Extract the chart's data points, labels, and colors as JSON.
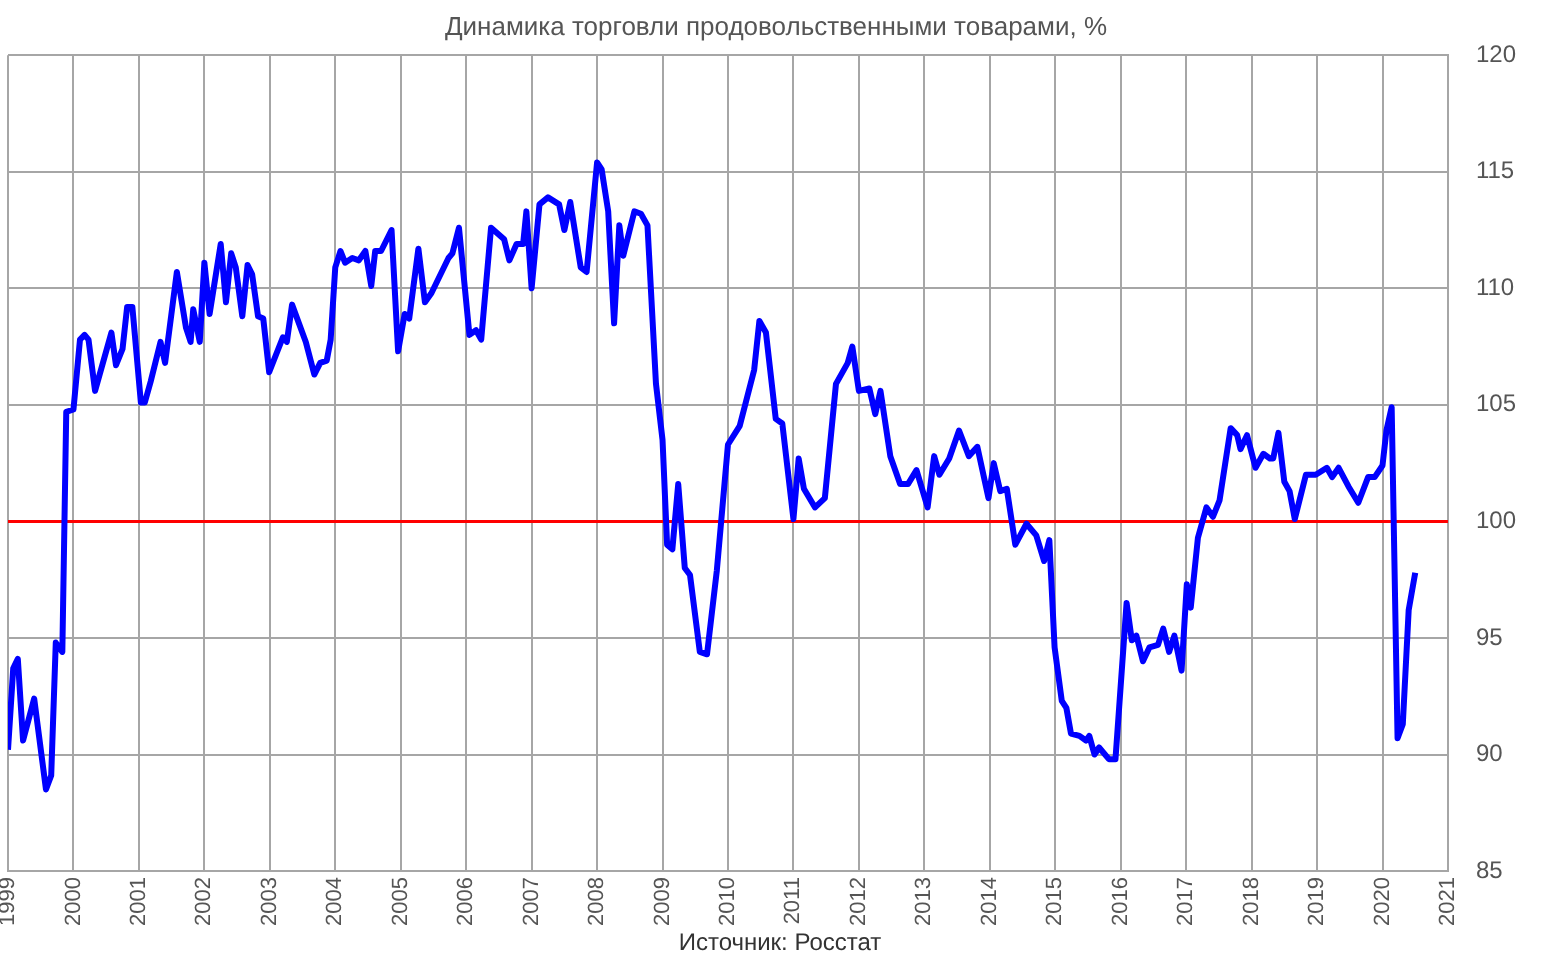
{
  "chart_data": {
    "type": "line",
    "title": "Динамика торговли продовольственными товарами, %",
    "x": [
      1999.0,
      1999.08,
      1999.15,
      1999.23,
      1999.4,
      1999.58,
      1999.66,
      1999.73,
      1999.83,
      1999.89,
      2000.0,
      2000.1,
      2000.17,
      2000.23,
      2000.33,
      2000.58,
      2000.65,
      2000.75,
      2000.82,
      2000.9,
      2001.03,
      2001.09,
      2001.18,
      2001.33,
      2001.4,
      2001.58,
      2001.72,
      2001.79,
      2001.83,
      2001.93,
      2002.0,
      2002.08,
      2002.25,
      2002.33,
      2002.41,
      2002.48,
      2002.58,
      2002.66,
      2002.73,
      2002.82,
      2002.9,
      2002.99,
      2003.2,
      2003.26,
      2003.34,
      2003.55,
      2003.68,
      2003.77,
      2003.87,
      2003.93,
      2004.0,
      2004.08,
      2004.15,
      2004.26,
      2004.36,
      2004.46,
      2004.55,
      2004.61,
      2004.7,
      2004.86,
      2004.96,
      2005.06,
      2005.13,
      2005.27,
      2005.37,
      2005.47,
      2005.73,
      2005.79,
      2005.89,
      2006.05,
      2006.15,
      2006.23,
      2006.38,
      2006.58,
      2006.66,
      2006.77,
      2006.87,
      2006.92,
      2007.0,
      2007.12,
      2007.25,
      2007.42,
      2007.5,
      2007.59,
      2007.75,
      2007.84,
      2008.0,
      2008.07,
      2008.17,
      2008.26,
      2008.34,
      2008.4,
      2008.57,
      2008.67,
      2008.77,
      2008.9,
      2009.0,
      2009.07,
      2009.15,
      2009.24,
      2009.34,
      2009.42,
      2009.57,
      2009.68,
      2009.83,
      2010.0,
      2010.18,
      2010.4,
      2010.48,
      2010.58,
      2010.73,
      2010.83,
      2011.0,
      2011.08,
      2011.16,
      2011.33,
      2011.48,
      2011.65,
      2011.83,
      2011.9,
      2012.0,
      2012.16,
      2012.25,
      2012.33,
      2012.48,
      2012.63,
      2012.75,
      2012.88,
      2013.05,
      2013.15,
      2013.23,
      2013.38,
      2013.53,
      2013.68,
      2013.81,
      2013.98,
      2014.06,
      2014.16,
      2014.26,
      2014.39,
      2014.56,
      2014.71,
      2014.83,
      2014.91,
      2014.99,
      2015.1,
      2015.17,
      2015.24,
      2015.37,
      2015.47,
      2015.52,
      2015.6,
      2015.67,
      2015.82,
      2015.92,
      2016.09,
      2016.17,
      2016.24,
      2016.34,
      2016.44,
      2016.57,
      2016.65,
      2016.74,
      2016.82,
      2016.93,
      2017.01,
      2017.07,
      2017.18,
      2017.31,
      2017.41,
      2017.51,
      2017.68,
      2017.78,
      2017.83,
      2017.93,
      2018.06,
      2018.18,
      2018.28,
      2018.33,
      2018.41,
      2018.5,
      2018.58,
      2018.66,
      2018.83,
      2018.98,
      2019.15,
      2019.23,
      2019.33,
      2019.48,
      2019.63,
      2019.78,
      2019.88,
      2020.0,
      2020.06,
      2020.14,
      2020.23,
      2020.31,
      2020.4,
      2020.5
    ],
    "series": [
      {
        "color": "#0000ff",
        "values": [
          90.2,
          93.7,
          94.1,
          90.6,
          92.4,
          88.5,
          89.1,
          94.8,
          94.4,
          104.7,
          104.8,
          107.8,
          108.0,
          107.8,
          105.6,
          108.1,
          106.7,
          107.4,
          109.2,
          109.2,
          105.1,
          105.1,
          106.0,
          107.7,
          106.8,
          110.7,
          108.3,
          107.7,
          109.1,
          107.7,
          111.1,
          108.9,
          111.9,
          109.4,
          111.5,
          110.9,
          108.8,
          111.0,
          110.6,
          108.8,
          108.7,
          106.4,
          107.9,
          107.7,
          109.3,
          107.7,
          106.3,
          106.8,
          106.9,
          107.8,
          110.9,
          111.6,
          111.1,
          111.3,
          111.2,
          111.6,
          110.1,
          111.6,
          111.6,
          112.5,
          107.3,
          108.9,
          108.7,
          111.7,
          109.4,
          109.8,
          111.3,
          111.5,
          112.6,
          108.0,
          108.2,
          107.8,
          112.6,
          112.1,
          111.2,
          111.9,
          111.9,
          113.3,
          110.0,
          113.6,
          113.9,
          113.6,
          112.5,
          113.7,
          110.9,
          110.7,
          115.4,
          115.1,
          113.3,
          108.5,
          112.7,
          111.4,
          113.3,
          113.2,
          112.7,
          105.9,
          103.5,
          99.0,
          98.8,
          101.6,
          98.0,
          97.7,
          94.4,
          94.3,
          97.9,
          103.3,
          104.1,
          106.5,
          108.6,
          108.1,
          104.4,
          104.2,
          100.1,
          102.7,
          101.4,
          100.6,
          101.0,
          105.9,
          106.8,
          107.5,
          105.6,
          105.7,
          104.6,
          105.6,
          102.8,
          101.6,
          101.6,
          102.2,
          100.6,
          102.8,
          102.0,
          102.7,
          103.9,
          102.8,
          103.2,
          101.0,
          102.5,
          101.3,
          101.4,
          99.0,
          99.9,
          99.4,
          98.3,
          99.2,
          94.6,
          92.3,
          92.0,
          90.9,
          90.8,
          90.6,
          90.8,
          90.0,
          90.3,
          89.8,
          89.8,
          96.5,
          94.9,
          95.1,
          94.0,
          94.6,
          94.7,
          95.4,
          94.4,
          95.1,
          93.6,
          97.3,
          96.3,
          99.3,
          100.6,
          100.2,
          100.9,
          104.0,
          103.7,
          103.1,
          103.7,
          102.3,
          102.9,
          102.7,
          102.7,
          103.8,
          101.7,
          101.3,
          100.1,
          102.0,
          102.0,
          102.3,
          101.9,
          102.3,
          101.5,
          100.8,
          101.9,
          101.9,
          102.4,
          103.9,
          104.9,
          90.7,
          91.3,
          96.2,
          97.8
        ]
      }
    ],
    "xlim": [
      1999,
      2021
    ],
    "xticks": [
      1999,
      2000,
      2001,
      2002,
      2003,
      2004,
      2005,
      2006,
      2007,
      2008,
      2009,
      2010,
      2011,
      2012,
      2013,
      2014,
      2015,
      2016,
      2017,
      2018,
      2019,
      2020,
      2021
    ],
    "ylim": [
      85,
      120
    ],
    "yticks": [
      85,
      90,
      95,
      100,
      105,
      110,
      115,
      120
    ],
    "ref_lines": [
      {
        "axis": "y",
        "value": 100,
        "color": "#ff0000"
      }
    ],
    "grid": true,
    "marker": "none",
    "line_style": "solid",
    "annotations": [
      "Источник: Росстат"
    ]
  }
}
